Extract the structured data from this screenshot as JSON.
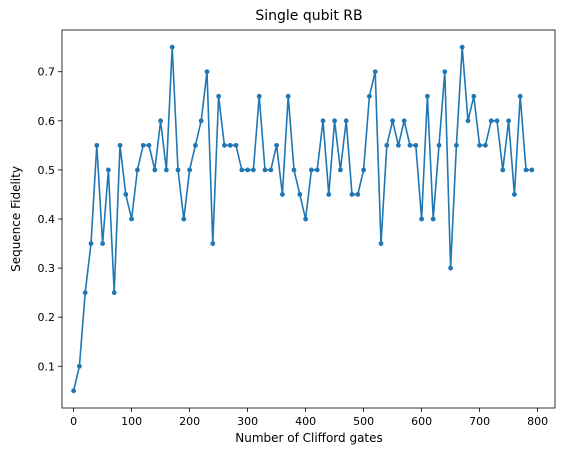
{
  "chart_data": {
    "type": "line",
    "title": "Single qubit RB",
    "xlabel": "Number of Clifford gates",
    "ylabel": "Sequence Fidelity",
    "xlim": [
      -20,
      830
    ],
    "ylim": [
      0.015,
      0.785
    ],
    "xticks": [
      0,
      100,
      200,
      300,
      400,
      500,
      600,
      700,
      800
    ],
    "yticks": [
      0.1,
      0.2,
      0.3,
      0.4,
      0.5,
      0.6,
      0.7
    ],
    "grid": false,
    "series": [
      {
        "color": "#1f77b4",
        "marker": "circle",
        "x": [
          0,
          10,
          20,
          30,
          40,
          50,
          60,
          70,
          80,
          90,
          100,
          110,
          120,
          130,
          140,
          150,
          160,
          170,
          180,
          190,
          200,
          210,
          220,
          230,
          240,
          250,
          260,
          270,
          280,
          290,
          300,
          310,
          320,
          330,
          340,
          350,
          360,
          370,
          380,
          390,
          400,
          410,
          420,
          430,
          440,
          450,
          460,
          470,
          480,
          490,
          500,
          510,
          520,
          530,
          540,
          550,
          560,
          570,
          580,
          590,
          600,
          610,
          620,
          630,
          640,
          650,
          660,
          670,
          680,
          690,
          700,
          710,
          720,
          730,
          740,
          750,
          760,
          770,
          780,
          790
        ],
        "y": [
          0.05,
          0.1,
          0.25,
          0.35,
          0.55,
          0.35,
          0.5,
          0.25,
          0.55,
          0.45,
          0.4,
          0.5,
          0.55,
          0.55,
          0.5,
          0.6,
          0.5,
          0.75,
          0.5,
          0.4,
          0.5,
          0.55,
          0.6,
          0.7,
          0.35,
          0.65,
          0.55,
          0.55,
          0.55,
          0.5,
          0.5,
          0.5,
          0.65,
          0.5,
          0.5,
          0.55,
          0.45,
          0.65,
          0.5,
          0.45,
          0.4,
          0.5,
          0.5,
          0.6,
          0.45,
          0.6,
          0.5,
          0.6,
          0.45,
          0.45,
          0.5,
          0.65,
          0.7,
          0.35,
          0.55,
          0.6,
          0.55,
          0.6,
          0.55,
          0.55,
          0.4,
          0.65,
          0.4,
          0.55,
          0.7,
          0.3,
          0.55,
          0.75,
          0.6,
          0.65,
          0.55,
          0.55,
          0.6,
          0.6,
          0.5,
          0.6,
          0.45,
          0.65,
          0.5,
          0.5
        ]
      }
    ]
  }
}
